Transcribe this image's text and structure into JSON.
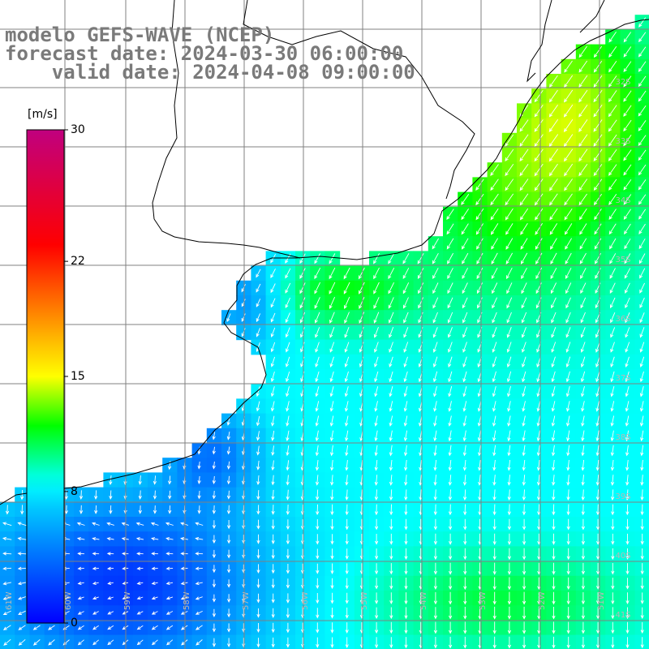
{
  "header": {
    "line1": "modelo GEFS-WAVE (NCEP)",
    "line2": "forecast date: 2024-03-30 06:00:00",
    "line3": "    valid date: 2024-04-08 09:00:00"
  },
  "colorbar": {
    "unit": "[m/s]",
    "ticks": [
      {
        "value": 30,
        "label": "30"
      },
      {
        "value": 22,
        "label": "22"
      },
      {
        "value": 15,
        "label": "15"
      },
      {
        "value": 8,
        "label": "8"
      },
      {
        "value": 0,
        "label": "0"
      }
    ],
    "min": 0,
    "max": 30,
    "colors": [
      "#0000ff",
      "#0070ff",
      "#00c8ff",
      "#00ffff",
      "#00ff00",
      "#ffff00",
      "#ff8000",
      "#ff0000",
      "#c0007f"
    ]
  },
  "map": {
    "lat_labels": [
      "32S",
      "33S",
      "34S",
      "35S",
      "36S",
      "37S",
      "38S",
      "39S",
      "40S",
      "41S"
    ],
    "lon_labels": [
      "61W",
      "60W",
      "59W",
      "58W",
      "57W",
      "56W",
      "55W",
      "54W",
      "53W",
      "52W",
      "51W"
    ],
    "field": "wind speed and direction",
    "arrow_color": "#ffffff",
    "land_color": "#ffffff",
    "coast_color": "#000000",
    "grid_color": "#808080"
  }
}
